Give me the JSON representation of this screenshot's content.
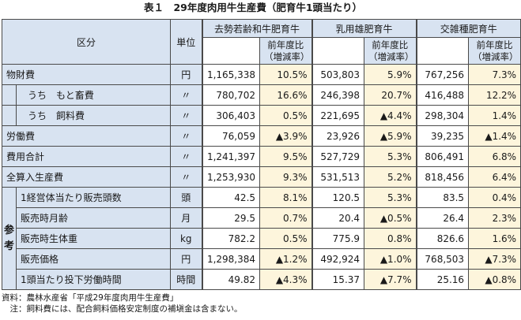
{
  "title": "表１　29年度肉用牛生産費（肥育牛1頭当たり）",
  "header": {
    "category": "区分",
    "unit": "単位",
    "groups": [
      "去勢若齢和牛肥育牛",
      "乳用雄肥育牛",
      "交雑種肥育牛"
    ],
    "ratio_line1": "前年度比",
    "ratio_line2": "（増減率）"
  },
  "sankou_label": "参考",
  "rows": [
    {
      "label": "物財費",
      "unit": "円",
      "v1": "1,165,338",
      "r1": "10.5%",
      "v2": "503,803",
      "r2": "5.9%",
      "v3": "767,256",
      "r3": "7.3%"
    },
    {
      "label": "うち　もと畜費",
      "unit": "〃",
      "v1": "780,702",
      "r1": "16.6%",
      "v2": "246,398",
      "r2": "20.7%",
      "v3": "416,488",
      "r3": "12.2%"
    },
    {
      "label": "うち　飼料費",
      "unit": "〃",
      "v1": "306,403",
      "r1": "0.5%",
      "v2": "221,695",
      "r2": "▲4.4%",
      "v3": "298,304",
      "r3": "1.4%"
    },
    {
      "label": "労働費",
      "unit": "〃",
      "v1": "76,059",
      "r1": "▲3.9%",
      "v2": "23,926",
      "r2": "▲5.9%",
      "v3": "39,235",
      "r3": "▲1.4%"
    },
    {
      "label": "費用合計",
      "unit": "〃",
      "v1": "1,241,397",
      "r1": "9.5%",
      "v2": "527,729",
      "r2": "5.3%",
      "v3": "806,491",
      "r3": "6.8%"
    },
    {
      "label": "全算入生産費",
      "unit": "〃",
      "v1": "1,253,930",
      "r1": "9.3%",
      "v2": "531,513",
      "r2": "5.2%",
      "v3": "818,456",
      "r3": "6.4%"
    },
    {
      "label": "1経営体当たり販売頭数",
      "unit": "頭",
      "v1": "42.5",
      "r1": "8.1%",
      "v2": "120.5",
      "r2": "5.3%",
      "v3": "83.5",
      "r3": "0.4%"
    },
    {
      "label": "販売時月齢",
      "unit": "月",
      "v1": "29.5",
      "r1": "0.7%",
      "v2": "20.4",
      "r2": "▲0.5%",
      "v3": "26.4",
      "r3": "2.3%"
    },
    {
      "label": "販売時生体重",
      "unit": "kg",
      "v1": "782.2",
      "r1": "0.5%",
      "v2": "775.9",
      "r2": "0.8%",
      "v3": "826.6",
      "r3": "1.6%"
    },
    {
      "label": "販売価格",
      "unit": "円",
      "v1": "1,298,384",
      "r1": "▲1.2%",
      "v2": "492,924",
      "r2": "▲1.0%",
      "v3": "768,503",
      "r3": "▲7.3%"
    },
    {
      "label": "1頭当たり投下労働時間",
      "unit": "時間",
      "v1": "49.82",
      "r1": "▲4.3%",
      "v2": "15.37",
      "r2": "▲7.7%",
      "v3": "25.16",
      "r3": "▲0.8%"
    }
  ],
  "notes": {
    "source": "資料：農林水産省「平成29年度肉用牛生産費」",
    "note": "　注：飼料費には、配合飼料価格安定制度の補塡金は含まない。"
  }
}
